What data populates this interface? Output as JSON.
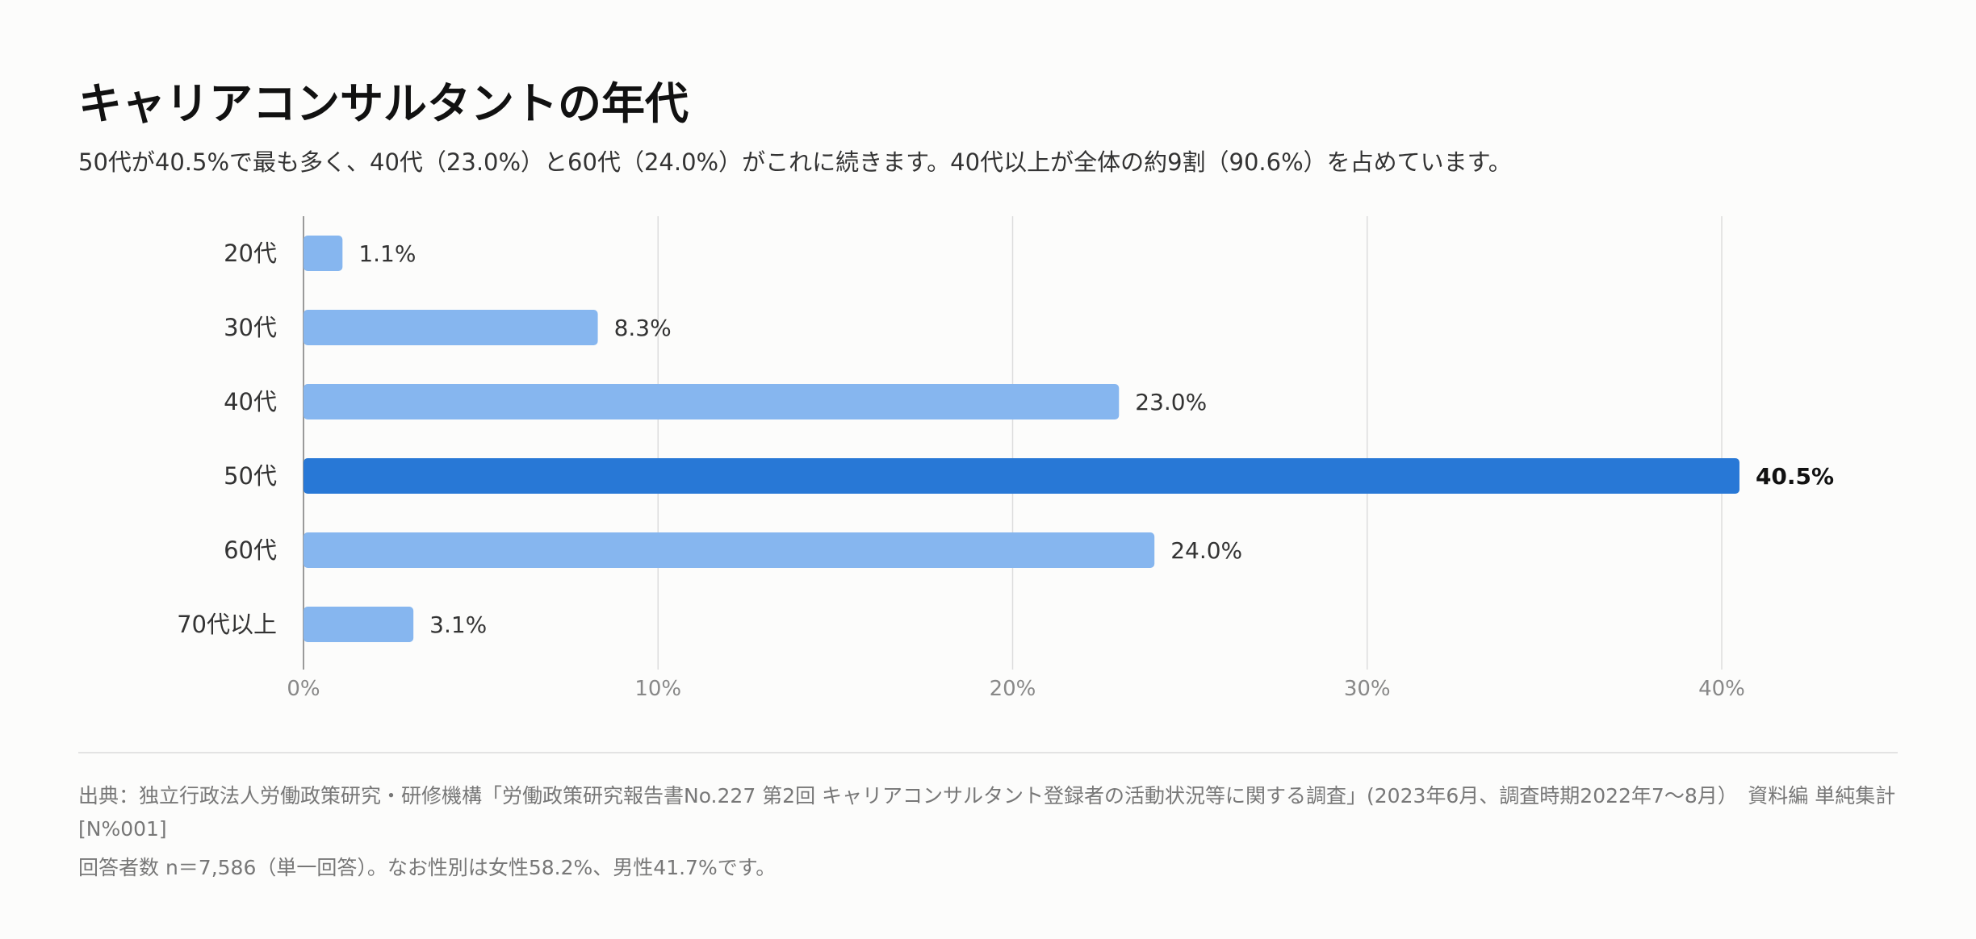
{
  "title": "キャリアコンサルタントの年代",
  "subtitle": "50代が40.5%で最も多く、40代（23.0%）と60代（24.0%）がこれに続きます。40代以上が全体の約9割（90.6%）を占めています。",
  "source": "出典：独立行政法人労働政策研究・研修機構「労働政策研究報告書No.227 第2回 キャリアコンサルタント登録者の活動状況等に関する調査」(2023年6月、調査時期2022年7〜8月）　資料編 単純集計 [N%001]",
  "note": "回答者数 n＝7,586（単一回答）。なお性別は女性58.2%、男性41.7%です。",
  "colors": {
    "bar": "#86b6ef",
    "highlight": "#2878d6",
    "grid": "#dddddd",
    "axis": "#9a9a9a"
  },
  "chart_data": {
    "type": "bar",
    "orientation": "horizontal",
    "categories": [
      "20代",
      "30代",
      "40代",
      "50代",
      "60代",
      "70代以上"
    ],
    "values": [
      1.1,
      8.3,
      23.0,
      40.5,
      24.0,
      3.1
    ],
    "value_labels": [
      "1.1%",
      "8.3%",
      "23.0%",
      "40.5%",
      "24.0%",
      "3.1%"
    ],
    "highlight_category": "50代",
    "xlim": [
      0,
      42
    ],
    "x_ticks": [
      0,
      10,
      20,
      30,
      40
    ],
    "x_tick_labels": [
      "0%",
      "10%",
      "20%",
      "30%",
      "40%"
    ],
    "grid": true,
    "legend": "none"
  }
}
